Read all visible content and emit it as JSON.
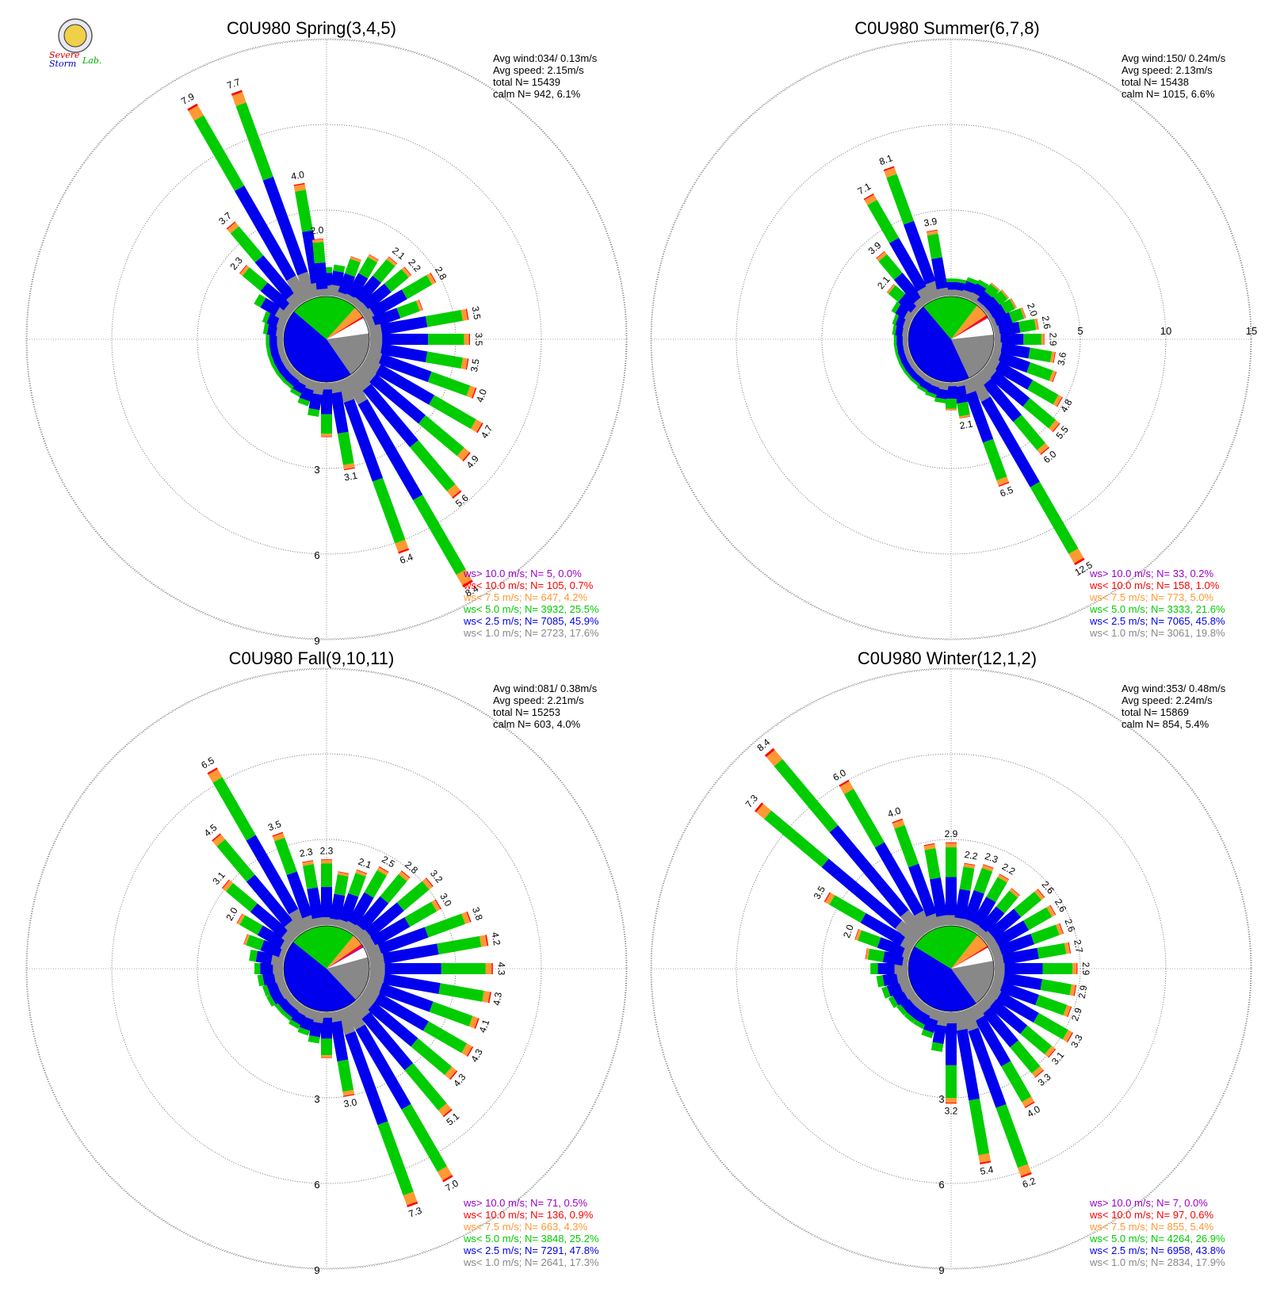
{
  "colors": {
    "calm": "#888888",
    "lt1": "#888888",
    "lt2_5": "#0000ee",
    "lt5": "#00cc00",
    "lt7_5": "#ff9933",
    "lt10": "#ff0000",
    "gt10": "#9900cc",
    "grid": "#555555"
  },
  "logo": {
    "icon": "severe-storm-lab-seal-icon",
    "text_severe": "Severe",
    "text_storm": "Storm",
    "text_lab": "Lab."
  },
  "chart_data": [
    {
      "type": "wind-rose",
      "title": "C0U980 Spring(3,4,5)",
      "ring_labels": [
        "3",
        "6",
        "9"
      ],
      "stats": [
        "Avg wind:034/ 0.13m/s",
        "Avg speed: 2.15m/s",
        "total N=       15439",
        "calm N=    942,   6.1%"
      ],
      "legend": [
        {
          "text": "ws> 10.0 m/s; N=      5,  0.0%",
          "class": "gt10"
        },
        {
          "text": "ws< 10.0 m/s; N=   105,  0.7%",
          "class": "lt10"
        },
        {
          "text": "ws<  7.5 m/s; N=   647,  4.2%",
          "class": "lt7_5"
        },
        {
          "text": "ws<  5.0 m/s; N=  3932, 25.5%",
          "class": "lt5"
        },
        {
          "text": "ws<  2.5 m/s; N=  7085, 45.9%",
          "class": "lt2_5"
        },
        {
          "text": "ws<  1.0 m/s; N=  2723, 17.6%",
          "class": "lt1"
        }
      ],
      "sector_shares": [
        6.1,
        17.6,
        45.9,
        25.5,
        4.2,
        0.7,
        0.0
      ],
      "bars": [
        [
          0,
          1.0
        ],
        [
          10,
          1.1
        ],
        [
          20,
          1.5
        ],
        [
          30,
          1.8
        ],
        [
          40,
          2.1,
          "2.1"
        ],
        [
          50,
          2.2,
          "2.2"
        ],
        [
          60,
          2.8,
          "2.8"
        ],
        [
          70,
          2.0
        ],
        [
          80,
          3.5,
          "3.5"
        ],
        [
          90,
          3.5,
          "3.5"
        ],
        [
          100,
          3.5,
          "3.5"
        ],
        [
          110,
          4.0,
          "4.0"
        ],
        [
          120,
          4.7,
          "4.7"
        ],
        [
          130,
          4.9,
          "4.9"
        ],
        [
          140,
          5.6,
          "5.6"
        ],
        [
          150,
          8.4,
          "8.4"
        ],
        [
          160,
          6.4,
          "6.4"
        ],
        [
          170,
          3.1,
          "3.1"
        ],
        [
          180,
          1.9
        ],
        [
          190,
          1.2
        ],
        [
          200,
          0.9
        ],
        [
          210,
          0.7
        ],
        [
          220,
          0.6
        ],
        [
          230,
          0.6
        ],
        [
          240,
          0.6
        ],
        [
          250,
          0.6
        ],
        [
          260,
          0.6
        ],
        [
          270,
          0.6
        ],
        [
          280,
          0.7
        ],
        [
          290,
          0.8
        ],
        [
          300,
          1.3
        ],
        [
          310,
          2.3,
          "2.3"
        ],
        [
          320,
          3.7,
          "3.7"
        ],
        [
          330,
          7.9,
          "7.9"
        ],
        [
          340,
          7.7,
          "7.7"
        ],
        [
          350,
          4.0,
          "4.0"
        ],
        [
          355,
          2.0,
          "2.0"
        ]
      ]
    },
    {
      "type": "wind-rose",
      "title": "C0U980 Summer(6,7,8)",
      "ring_labels": [
        "5",
        "10",
        "15"
      ],
      "stats": [
        "Avg wind:150/ 0.24m/s",
        "Avg speed: 2.13m/s",
        "total N=       15438",
        "calm N=  1015,   6.6%"
      ],
      "legend": [
        {
          "text": "ws> 10.0 m/s; N=    33,  0.2%",
          "class": "gt10"
        },
        {
          "text": "ws< 10.0 m/s; N=   158,  1.0%",
          "class": "lt10"
        },
        {
          "text": "ws<  7.5 m/s; N=   773,  5.0%",
          "class": "lt7_5"
        },
        {
          "text": "ws<  5.0 m/s; N=  3333, 21.6%",
          "class": "lt5"
        },
        {
          "text": "ws<  2.5 m/s; N=  7065, 45.8%",
          "class": "lt2_5"
        },
        {
          "text": "ws<  1.0 m/s; N=  3061, 19.8%",
          "class": "lt1"
        }
      ],
      "sector_shares": [
        6.6,
        19.8,
        45.8,
        21.6,
        5.0,
        1.0,
        0.2
      ],
      "bars": [
        [
          0,
          1.0
        ],
        [
          10,
          1.0
        ],
        [
          20,
          1.2
        ],
        [
          30,
          1.3
        ],
        [
          40,
          1.5
        ],
        [
          50,
          1.6
        ],
        [
          60,
          1.7
        ],
        [
          70,
          2.0,
          "2.0"
        ],
        [
          80,
          2.6,
          "2.6"
        ],
        [
          90,
          2.9,
          "2.9"
        ],
        [
          100,
          3.6,
          "3.6"
        ],
        [
          110,
          3.9
        ],
        [
          120,
          4.8,
          "4.8"
        ],
        [
          130,
          5.5,
          "5.5"
        ],
        [
          140,
          6.0,
          "6.0"
        ],
        [
          150,
          12.5,
          "12.5"
        ],
        [
          160,
          6.5,
          "6.5"
        ],
        [
          170,
          2.1,
          "2.1"
        ],
        [
          180,
          1.6
        ],
        [
          190,
          1.2
        ],
        [
          200,
          1.0
        ],
        [
          210,
          0.9
        ],
        [
          220,
          0.8
        ],
        [
          230,
          0.8
        ],
        [
          240,
          0.8
        ],
        [
          250,
          0.8
        ],
        [
          260,
          0.8
        ],
        [
          270,
          0.8
        ],
        [
          280,
          0.9
        ],
        [
          290,
          1.0
        ],
        [
          300,
          1.3
        ],
        [
          310,
          2.1,
          "2.1"
        ],
        [
          320,
          3.9,
          "3.9"
        ],
        [
          330,
          7.1,
          "7.1"
        ],
        [
          340,
          8.1,
          "8.1"
        ],
        [
          350,
          3.9,
          "3.9"
        ]
      ]
    },
    {
      "type": "wind-rose",
      "title": "C0U980 Fall(9,10,11)",
      "ring_labels": [
        "3",
        "6",
        "9"
      ],
      "stats": [
        "Avg wind:081/ 0.38m/s",
        "Avg speed: 2.21m/s",
        "total N=       15253",
        "calm N=    603,   4.0%"
      ],
      "legend": [
        {
          "text": "ws> 10.0 m/s; N=    71,  0.5%",
          "class": "gt10"
        },
        {
          "text": "ws< 10.0 m/s; N=   136,  0.9%",
          "class": "lt10"
        },
        {
          "text": "ws<  7.5 m/s; N=   663,  4.3%",
          "class": "lt7_5"
        },
        {
          "text": "ws<  5.0 m/s; N=  3848, 25.2%",
          "class": "lt5"
        },
        {
          "text": "ws<  2.5 m/s; N=  7291, 47.8%",
          "class": "lt2_5"
        },
        {
          "text": "ws<  1.0 m/s; N=  2641, 17.3%",
          "class": "lt1"
        }
      ],
      "sector_shares": [
        4.0,
        17.3,
        47.8,
        25.2,
        4.3,
        0.9,
        0.5
      ],
      "bars": [
        [
          0,
          2.3,
          "2.3"
        ],
        [
          10,
          1.9
        ],
        [
          20,
          2.1,
          "2.1"
        ],
        [
          30,
          2.5,
          "2.5"
        ],
        [
          40,
          2.8,
          "2.8"
        ],
        [
          50,
          3.2,
          "3.2"
        ],
        [
          60,
          3.0,
          "3.0"
        ],
        [
          70,
          3.8,
          "3.8"
        ],
        [
          80,
          4.2,
          "4.2"
        ],
        [
          90,
          4.3,
          "4.3"
        ],
        [
          100,
          4.3,
          "4.3"
        ],
        [
          110,
          4.1,
          "4.1"
        ],
        [
          120,
          4.3,
          "4.3"
        ],
        [
          130,
          4.3,
          "4.3"
        ],
        [
          140,
          5.1,
          "5.1"
        ],
        [
          150,
          7.0,
          "7.0"
        ],
        [
          160,
          7.3,
          "7.3"
        ],
        [
          170,
          3.0,
          "3.0"
        ],
        [
          180,
          1.6
        ],
        [
          190,
          1.1
        ],
        [
          200,
          0.9
        ],
        [
          210,
          0.8
        ],
        [
          220,
          0.7
        ],
        [
          230,
          0.7
        ],
        [
          240,
          0.8
        ],
        [
          250,
          0.8
        ],
        [
          260,
          0.9
        ],
        [
          270,
          1.0
        ],
        [
          280,
          1.2
        ],
        [
          290,
          1.5
        ],
        [
          300,
          2.0,
          "2.0"
        ],
        [
          310,
          3.1,
          "3.1"
        ],
        [
          320,
          4.5,
          "4.5"
        ],
        [
          330,
          6.5,
          "6.5"
        ],
        [
          340,
          3.5,
          "3.5"
        ],
        [
          350,
          2.3,
          "2.3"
        ]
      ]
    },
    {
      "type": "wind-rose",
      "title": "C0U980 Winter(12,1,2)",
      "ring_labels": [
        "3",
        "6",
        "9"
      ],
      "stats": [
        "Avg wind:353/ 0.48m/s",
        "Avg speed: 2.24m/s",
        "total N=       15869",
        "calm N=    854,   5.4%"
      ],
      "legend": [
        {
          "text": "ws> 10.0 m/s; N=      7,  0.0%",
          "class": "gt10"
        },
        {
          "text": "ws< 10.0 m/s; N=     97,  0.6%",
          "class": "lt10"
        },
        {
          "text": "ws<  7.5 m/s; N=   855,  5.4%",
          "class": "lt7_5"
        },
        {
          "text": "ws<  5.0 m/s; N=  4264, 26.9%",
          "class": "lt5"
        },
        {
          "text": "ws<  2.5 m/s; N=  6958, 43.8%",
          "class": "lt2_5"
        },
        {
          "text": "ws<  1.0 m/s; N=  2834, 17.9%",
          "class": "lt1"
        }
      ],
      "sector_shares": [
        5.4,
        17.9,
        43.8,
        26.9,
        5.4,
        0.6,
        0.0
      ],
      "bars": [
        [
          0,
          2.9,
          "2.9"
        ],
        [
          10,
          2.2,
          "2.2"
        ],
        [
          20,
          2.3,
          "2.3"
        ],
        [
          30,
          2.2,
          "2.2"
        ],
        [
          40,
          2.0
        ],
        [
          50,
          2.6,
          "2.6"
        ],
        [
          60,
          2.6,
          "2.6"
        ],
        [
          70,
          2.6,
          "2.6"
        ],
        [
          80,
          2.7,
          "2.7"
        ],
        [
          90,
          2.9,
          "2.9"
        ],
        [
          100,
          2.9,
          "2.9"
        ],
        [
          110,
          2.9,
          "2.9"
        ],
        [
          120,
          3.3,
          "3.3"
        ],
        [
          130,
          3.1,
          "3.1"
        ],
        [
          140,
          3.3,
          "3.3"
        ],
        [
          150,
          4.0,
          "4.0"
        ],
        [
          160,
          6.2,
          "6.2"
        ],
        [
          170,
          5.4,
          "5.4"
        ],
        [
          180,
          3.2,
          "3.2"
        ],
        [
          190,
          1.4
        ],
        [
          200,
          1.0
        ],
        [
          210,
          0.8
        ],
        [
          220,
          0.8
        ],
        [
          230,
          0.8
        ],
        [
          240,
          0.9
        ],
        [
          250,
          1.0
        ],
        [
          260,
          1.1
        ],
        [
          270,
          1.3
        ],
        [
          280,
          1.5
        ],
        [
          290,
          2.0,
          "2.0"
        ],
        [
          300,
          3.5,
          "3.5"
        ],
        [
          310,
          7.3,
          "7.3"
        ],
        [
          320,
          8.4,
          "8.4"
        ],
        [
          330,
          6.0,
          "6.0"
        ],
        [
          340,
          4.0,
          "4.0"
        ],
        [
          350,
          2.9
        ]
      ]
    }
  ]
}
